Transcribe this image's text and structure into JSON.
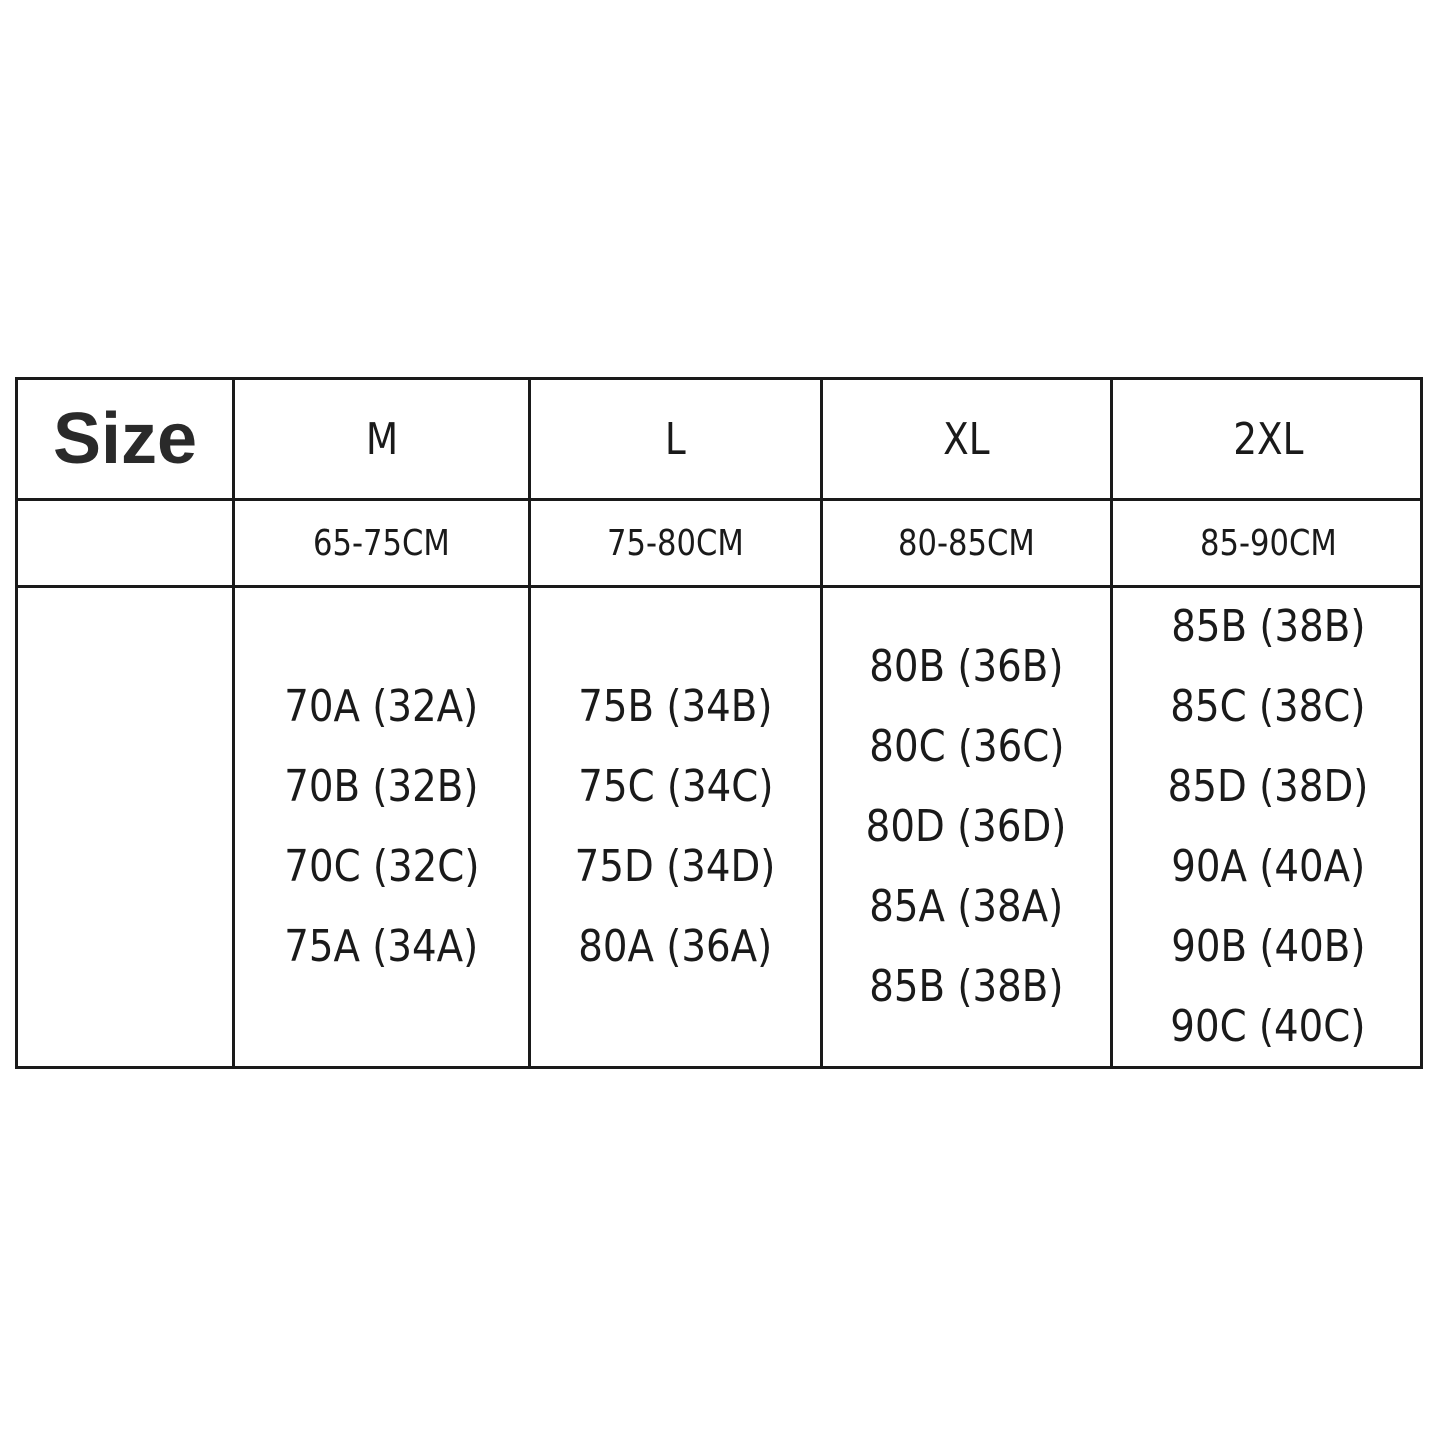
{
  "table": {
    "corner_label": "Size",
    "columns": [
      {
        "size": "M",
        "range": "65-75CM",
        "cups": [
          "70A (32A)",
          "70B (32B)",
          "70C (32C)",
          "75A (34A)"
        ]
      },
      {
        "size": "L",
        "range": "75-80CM",
        "cups": [
          "75B (34B)",
          "75C (34C)",
          "75D (34D)",
          "80A (36A)"
        ]
      },
      {
        "size": "XL",
        "range": "80-85CM",
        "cups": [
          "80B (36B)",
          "80C (36C)",
          "80D (36D)",
          "85A (38A)",
          "85B (38B)"
        ]
      },
      {
        "size": "2XL",
        "range": "85-90CM",
        "cups": [
          "85B (38B)",
          "85C (38C)",
          "85D (38D)",
          "90A (40A)",
          "90B (40B)",
          "90C (40C)"
        ]
      }
    ]
  }
}
